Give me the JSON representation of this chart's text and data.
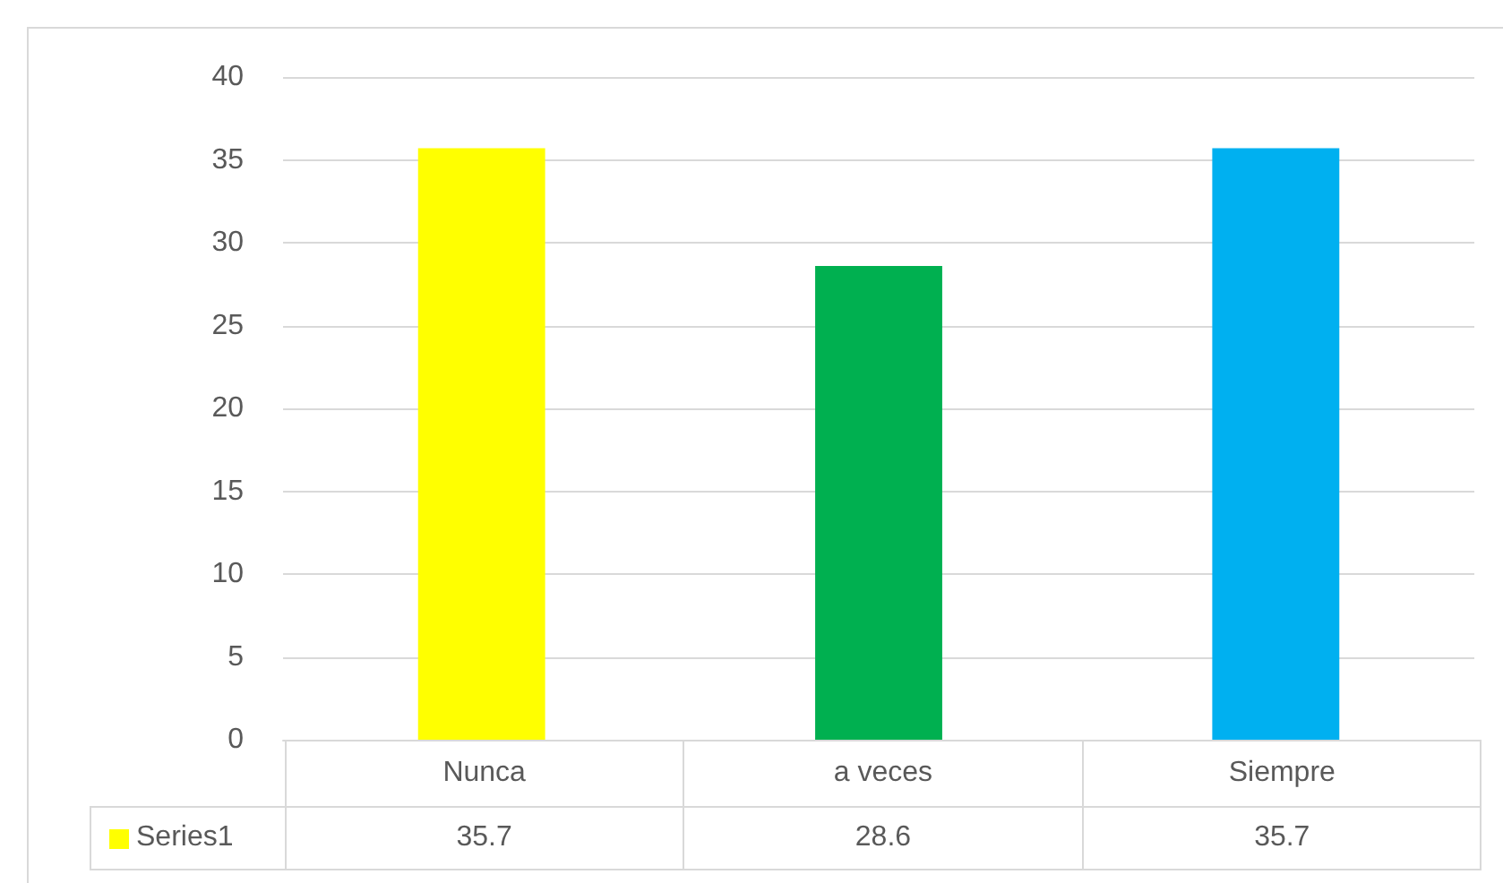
{
  "chart_data": {
    "type": "bar",
    "categories": [
      "Nunca",
      "a veces",
      "Siempre"
    ],
    "series": [
      {
        "name": "Series1",
        "color": "#ffff00",
        "colors": [
          "#ffff00",
          "#00b050",
          "#00b0f0"
        ],
        "values": [
          35.7,
          28.6,
          35.7
        ]
      }
    ],
    "ylim": [
      0,
      40
    ],
    "yticks": [
      0,
      5,
      10,
      15,
      20,
      25,
      30,
      35,
      40
    ],
    "grid": "y",
    "legend": "bottom",
    "data_labels": true
  }
}
